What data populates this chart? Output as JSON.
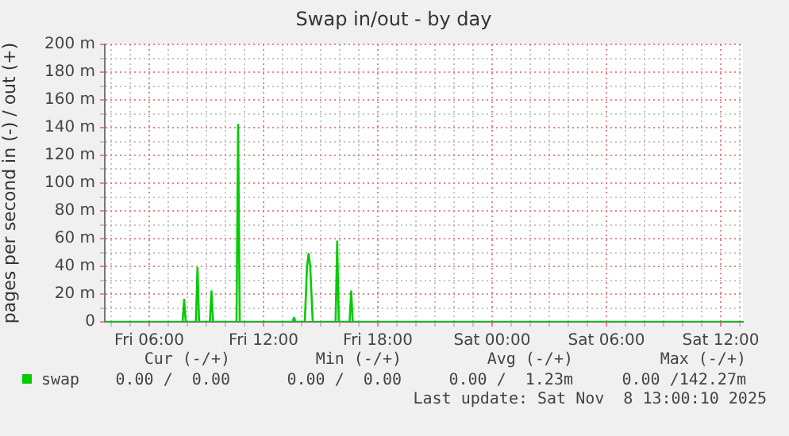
{
  "chart_data": {
    "type": "line",
    "title": "Swap in/out - by day",
    "ylabel": "pages per second in (-) / out (+)",
    "x": [
      "2025-11-07T03:40",
      "2025-11-07T07:45",
      "2025-11-07T07:50",
      "2025-11-07T07:55",
      "2025-11-07T08:27",
      "2025-11-07T08:32",
      "2025-11-07T08:37",
      "2025-11-07T09:11",
      "2025-11-07T09:16",
      "2025-11-07T09:21",
      "2025-11-07T10:35",
      "2025-11-07T10:40",
      "2025-11-07T10:45",
      "2025-11-07T13:31",
      "2025-11-07T13:36",
      "2025-11-07T13:41",
      "2025-11-07T14:10",
      "2025-11-07T14:17",
      "2025-11-07T14:22",
      "2025-11-07T14:27",
      "2025-11-07T14:35",
      "2025-11-07T15:47",
      "2025-11-07T15:52",
      "2025-11-07T15:57",
      "2025-11-07T16:31",
      "2025-11-07T16:36",
      "2025-11-07T16:41",
      "2025-11-08T13:10"
    ],
    "series": [
      {
        "name": "swap",
        "color": "#00cc00",
        "values": [
          0,
          0,
          16,
          0,
          0,
          39,
          0,
          0,
          22,
          0,
          0,
          142,
          0,
          0,
          3,
          0,
          0,
          40,
          49,
          40,
          0,
          0,
          58,
          0,
          0,
          22,
          0,
          0
        ]
      }
    ],
    "xlim": [
      "2025-11-07T03:40",
      "2025-11-08T13:10"
    ],
    "xticks": [
      {
        "value": "2025-11-07T04:00",
        "label": null
      },
      {
        "value": "2025-11-07T05:00",
        "label": null
      },
      {
        "value": "2025-11-07T06:00",
        "label": "Fri 06:00"
      },
      {
        "value": "2025-11-07T07:00",
        "label": null
      },
      {
        "value": "2025-11-07T08:00",
        "label": null
      },
      {
        "value": "2025-11-07T09:00",
        "label": null
      },
      {
        "value": "2025-11-07T10:00",
        "label": null
      },
      {
        "value": "2025-11-07T11:00",
        "label": null
      },
      {
        "value": "2025-11-07T12:00",
        "label": "Fri 12:00"
      },
      {
        "value": "2025-11-07T13:00",
        "label": null
      },
      {
        "value": "2025-11-07T14:00",
        "label": null
      },
      {
        "value": "2025-11-07T15:00",
        "label": null
      },
      {
        "value": "2025-11-07T16:00",
        "label": null
      },
      {
        "value": "2025-11-07T17:00",
        "label": null
      },
      {
        "value": "2025-11-07T18:00",
        "label": "Fri 18:00"
      },
      {
        "value": "2025-11-07T19:00",
        "label": null
      },
      {
        "value": "2025-11-07T20:00",
        "label": null
      },
      {
        "value": "2025-11-07T21:00",
        "label": null
      },
      {
        "value": "2025-11-07T22:00",
        "label": null
      },
      {
        "value": "2025-11-07T23:00",
        "label": null
      },
      {
        "value": "2025-11-08T00:00",
        "label": "Sat 00:00"
      },
      {
        "value": "2025-11-08T01:00",
        "label": null
      },
      {
        "value": "2025-11-08T02:00",
        "label": null
      },
      {
        "value": "2025-11-08T03:00",
        "label": null
      },
      {
        "value": "2025-11-08T04:00",
        "label": null
      },
      {
        "value": "2025-11-08T05:00",
        "label": null
      },
      {
        "value": "2025-11-08T06:00",
        "label": "Sat 06:00"
      },
      {
        "value": "2025-11-08T07:00",
        "label": null
      },
      {
        "value": "2025-11-08T08:00",
        "label": null
      },
      {
        "value": "2025-11-08T09:00",
        "label": null
      },
      {
        "value": "2025-11-08T10:00",
        "label": null
      },
      {
        "value": "2025-11-08T11:00",
        "label": null
      },
      {
        "value": "2025-11-08T12:00",
        "label": "Sat 12:00"
      },
      {
        "value": "2025-11-08T13:00",
        "label": null
      }
    ],
    "ylim": [
      0,
      200
    ],
    "yticks": [
      0,
      {
        "value": 10,
        "label": null
      },
      {
        "value": 20,
        "label": "20 m"
      },
      {
        "value": 30,
        "label": null
      },
      {
        "value": 40,
        "label": "40 m"
      },
      {
        "value": 50,
        "label": null
      },
      {
        "value": 60,
        "label": "60 m"
      },
      {
        "value": 70,
        "label": null
      },
      {
        "value": 80,
        "label": "80 m"
      },
      {
        "value": 90,
        "label": null
      },
      {
        "value": 100,
        "label": "100 m"
      },
      {
        "value": 110,
        "label": null
      },
      {
        "value": 120,
        "label": "120 m"
      },
      {
        "value": 130,
        "label": null
      },
      {
        "value": 140,
        "label": "140 m"
      },
      {
        "value": 150,
        "label": null
      },
      {
        "value": 160,
        "label": "160 m"
      },
      {
        "value": 170,
        "label": null
      },
      {
        "value": 180,
        "label": "180 m"
      },
      {
        "value": 190,
        "label": null
      },
      {
        "value": 200,
        "label": "200 m"
      }
    ],
    "grid": true,
    "legend": "bottom left",
    "marker": "none",
    "line_style": "solid",
    "annotations": [
      "Cur (-/+)",
      "Min (-/+)",
      "Avg (-/+)",
      "Max (-/+)",
      "0.00 /  0.00",
      "0.00 /  0.00",
      "0.00 /  1.23m",
      "0.00 /142.27m",
      "Last update: Sat Nov  8 13:00:10 2025"
    ]
  }
}
